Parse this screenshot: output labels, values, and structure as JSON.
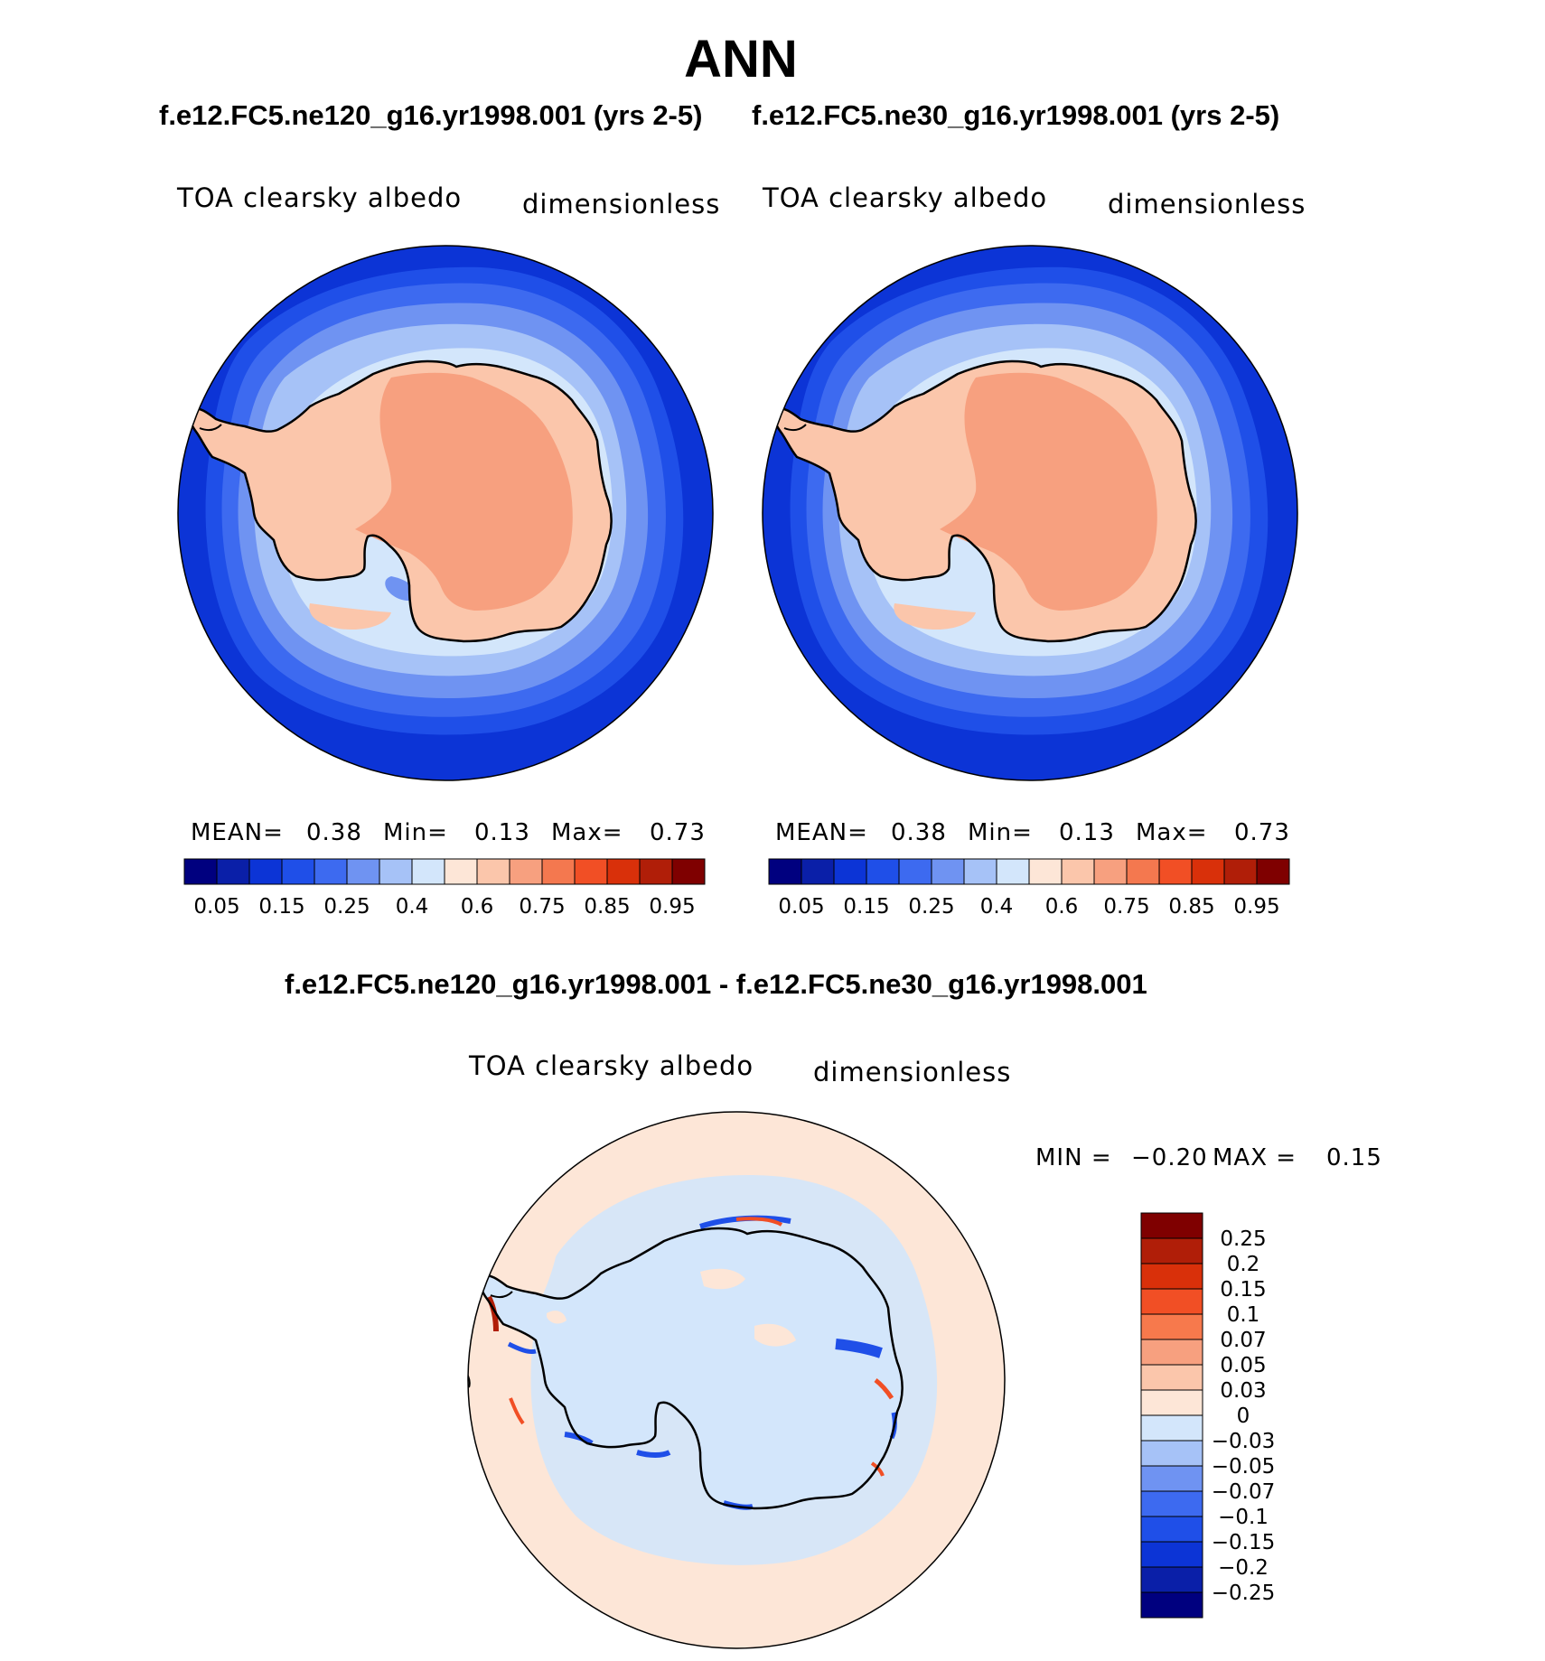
{
  "page_title": "ANN",
  "top_subtitles": {
    "left": "f.e12.FC5.ne120_g16.yr1998.001 (yrs 2-5)",
    "right": "f.e12.FC5.ne30_g16.yr1998.001 (yrs 2-5)"
  },
  "panel_left": {
    "variable": "TOA clearsky albedo",
    "units": "dimensionless",
    "stats": {
      "mean_label": "MEAN=",
      "mean": "0.38",
      "min_label": "Min=",
      "min": "0.13",
      "max_label": "Max=",
      "max": "0.73"
    }
  },
  "panel_right": {
    "variable": "TOA clearsky albedo",
    "units": "dimensionless",
    "stats": {
      "mean_label": "MEAN=",
      "mean": "0.38",
      "min_label": "Min=",
      "min": "0.13",
      "max_label": "Max=",
      "max": "0.73"
    }
  },
  "colorbar_top": {
    "colors": [
      "#00007f",
      "#0a1fa8",
      "#0c34d6",
      "#1f4fe8",
      "#3d6af0",
      "#6f93f2",
      "#a6c2f7",
      "#d3e6fb",
      "#fde6d7",
      "#fbc6ab",
      "#f7a07f",
      "#f4784f",
      "#f14f25",
      "#d9300a",
      "#b01e08",
      "#7f0000"
    ],
    "tick_labels": [
      "0.05",
      "0.15",
      "0.25",
      "0.4",
      "0.6",
      "0.75",
      "0.85",
      "0.95"
    ]
  },
  "diff_title": "f.e12.FC5.ne120_g16.yr1998.001 - f.e12.FC5.ne30_g16.yr1998.001",
  "panel_diff": {
    "variable": "TOA clearsky albedo",
    "units": "dimensionless",
    "minmax": {
      "min_label": "MIN =",
      "min": "−0.20",
      "max_label": "MAX =",
      "max": "0.15"
    }
  },
  "colorbar_diff": {
    "colors_top_to_bottom": [
      "#7f0000",
      "#b01e08",
      "#d9300a",
      "#f14f25",
      "#f7794c",
      "#f7a07f",
      "#fbc6ab",
      "#fde6d7",
      "#d3e6fb",
      "#a6c2f7",
      "#6f93f2",
      "#3d6af0",
      "#1f4fe8",
      "#0c34d6",
      "#0a1fa8",
      "#00007f"
    ],
    "tick_labels": [
      "0.25",
      "0.2",
      "0.15",
      "0.1",
      "0.07",
      "0.05",
      "0.03",
      "0",
      "−0.03",
      "−0.05",
      "−0.07",
      "−0.1",
      "−0.15",
      "−0.2",
      "−0.25"
    ]
  },
  "colors": {
    "ocean_deep": "#0c34d6",
    "ocean_mid": "#3d6af0",
    "ocean_light": "#6f93f2",
    "ice_pale": "#a6c2f7",
    "ice_palest": "#d3e6fb",
    "land_pale": "#fde6d7",
    "land": "#fbc6ab",
    "plateau": "#f7a07f",
    "diff_bg": "#fde6d7",
    "diff_neg": "#d3e6fb"
  }
}
